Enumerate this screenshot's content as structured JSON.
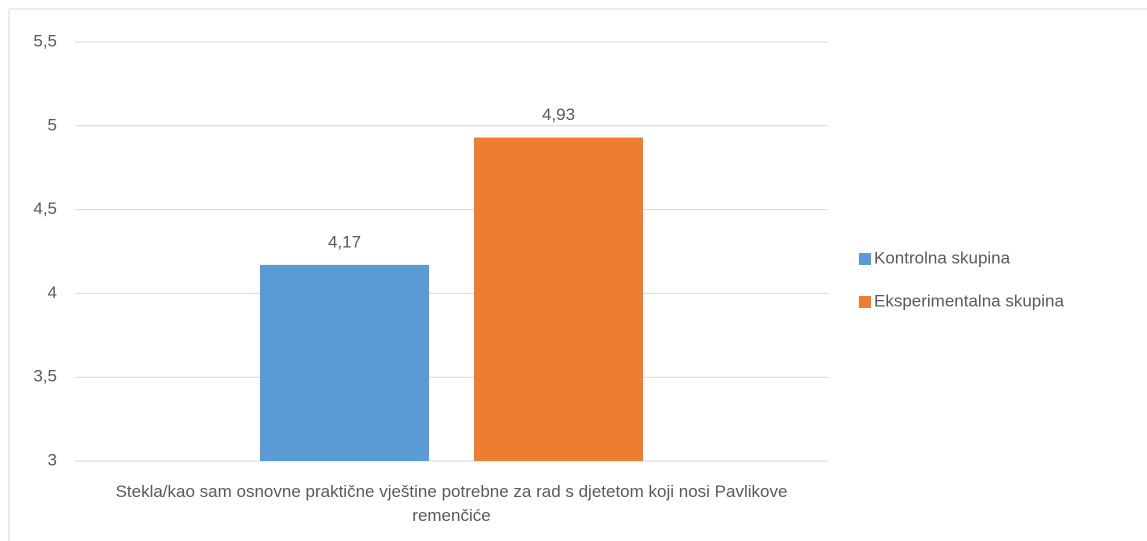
{
  "chart_data": {
    "type": "bar",
    "categories": [
      "Stekla/kao sam osnovne praktične vještine potrebne za rad s djetetom koji nosi Pavlikove remenčiće"
    ],
    "series": [
      {
        "name": "Kontrolna skupina",
        "color": "#5b9bd5",
        "values": [
          4.17
        ],
        "value_labels": [
          "4,17"
        ]
      },
      {
        "name": "Eksperimentalna skupina",
        "color": "#ed7d31",
        "values": [
          4.93
        ],
        "value_labels": [
          "4,93"
        ]
      }
    ],
    "ylim": [
      3,
      5.5
    ],
    "yticks": [
      3,
      {
        "value": 3.5,
        "label": "3,5"
      },
      4,
      {
        "value": 4.5,
        "label": "4,5"
      },
      5,
      {
        "value": 5.5,
        "label": "5,5"
      }
    ],
    "grid": true,
    "legend": "right"
  }
}
